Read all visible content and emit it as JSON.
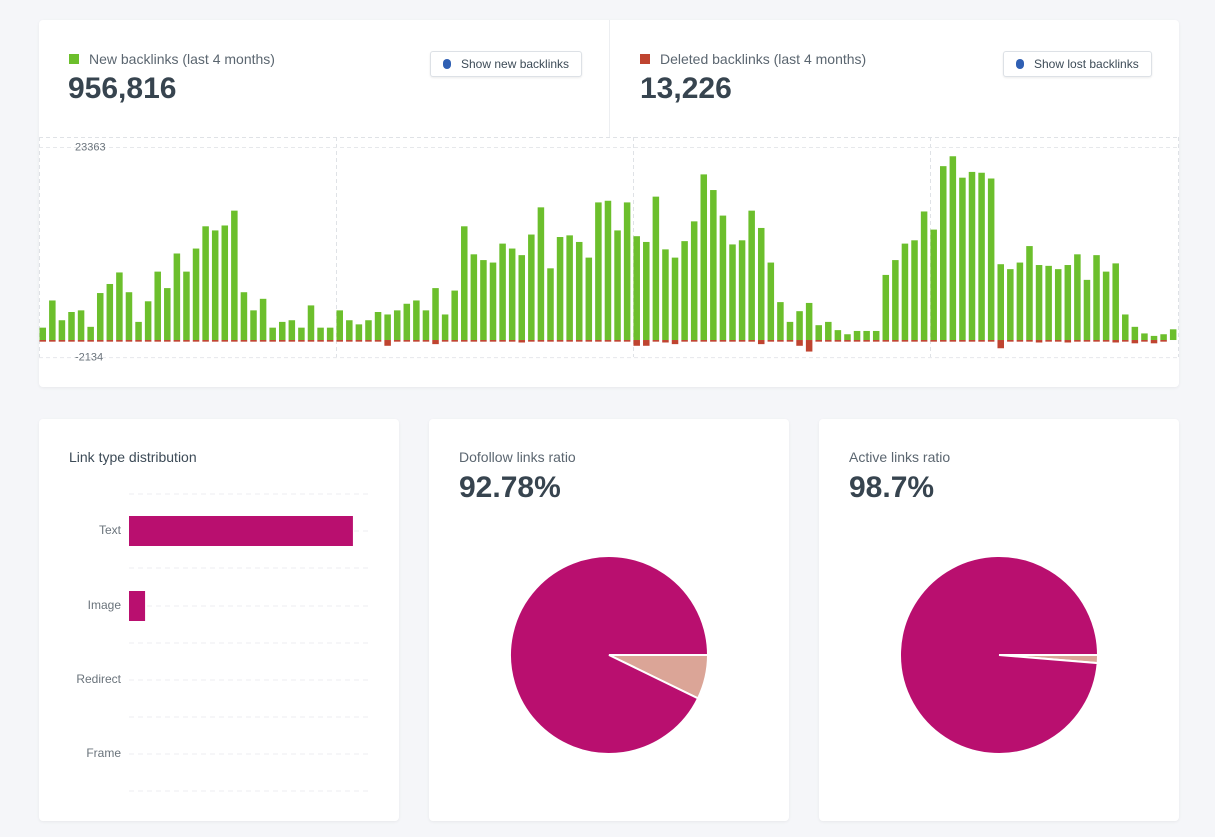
{
  "buttons": [
    "Show new backlinks",
    "Show lost backlinks"
  ],
  "chart_data": [
    {
      "type": "bar",
      "stacked_sign": true,
      "ylim": [
        -2134,
        23363
      ],
      "yticks": [
        23363,
        -2134
      ],
      "series": [
        {
          "name": "New backlinks (last 4 months)",
          "total": "956,816",
          "color": "#6cbf2c",
          "values": [
            1500,
            4800,
            2400,
            3400,
            3600,
            1600,
            5700,
            6800,
            8200,
            5800,
            2200,
            4700,
            8300,
            6300,
            10500,
            8300,
            11100,
            13800,
            13300,
            13900,
            15700,
            5800,
            3600,
            5000,
            1500,
            2200,
            2400,
            1500,
            4200,
            1500,
            1500,
            3600,
            2400,
            1900,
            2400,
            3400,
            3100,
            3600,
            4400,
            4800,
            3600,
            6300,
            3100,
            6000,
            13800,
            10400,
            9700,
            9400,
            11700,
            11100,
            10300,
            12800,
            16100,
            8700,
            12500,
            12700,
            11900,
            10000,
            16700,
            16900,
            13300,
            16700,
            12600,
            11900,
            17400,
            11000,
            10000,
            12000,
            14400,
            20100,
            18200,
            15100,
            11600,
            12100,
            15700,
            13600,
            9400,
            4600,
            2200,
            3500,
            4500,
            1800,
            2200,
            1200,
            700,
            1100,
            1100,
            1100,
            7900,
            9700,
            11700,
            12100,
            15600,
            13400,
            21100,
            22300,
            19700,
            20400,
            20300,
            19600,
            9200,
            8600,
            9400,
            11400,
            9100,
            9000,
            8600,
            9100,
            10400,
            7300,
            10300,
            8300,
            9300,
            3100,
            1600,
            800,
            500,
            700,
            1300
          ]
        },
        {
          "name": "Deleted backlinks (last 4 months)",
          "total": "13,226",
          "color": "#bf4430",
          "values": [
            -200,
            -200,
            -200,
            -200,
            -200,
            -200,
            -200,
            -200,
            -200,
            -200,
            -200,
            -200,
            -200,
            -200,
            -200,
            -200,
            -200,
            -200,
            -200,
            -200,
            -200,
            -200,
            -200,
            -200,
            -200,
            -200,
            -200,
            -200,
            -200,
            -200,
            -200,
            -200,
            -200,
            -200,
            -200,
            -200,
            -700,
            -200,
            -200,
            -200,
            -200,
            -500,
            -200,
            -200,
            -200,
            -200,
            -200,
            -200,
            -200,
            -200,
            -300,
            -200,
            -200,
            -200,
            -200,
            -200,
            -200,
            -200,
            -200,
            -200,
            -200,
            -200,
            -700,
            -700,
            -200,
            -300,
            -500,
            -200,
            -200,
            -200,
            -200,
            -200,
            -200,
            -200,
            -200,
            -500,
            -200,
            -200,
            -200,
            -700,
            -1400,
            -200,
            -200,
            -200,
            -200,
            -200,
            -200,
            -200,
            -200,
            -200,
            -200,
            -200,
            -200,
            -200,
            -200,
            -200,
            -200,
            -200,
            -200,
            -200,
            -1000,
            -200,
            -200,
            -200,
            -300,
            -200,
            -200,
            -300,
            -200,
            -200,
            -200,
            -200,
            -300,
            -200,
            -400,
            -200,
            -400,
            -200
          ]
        }
      ]
    },
    {
      "type": "hbar",
      "title": "Link type distribution",
      "categories": [
        "Text",
        "Image",
        "Redirect",
        "Frame"
      ],
      "values": [
        93.3,
        6.7,
        0,
        0
      ],
      "color": "#b90f6f"
    },
    {
      "type": "pie",
      "title": "Dofollow links ratio",
      "headline": "92.78%",
      "values": [
        92.78,
        7.22
      ],
      "colors": [
        "#b90f6f",
        "#dba597"
      ]
    },
    {
      "type": "pie",
      "title": "Active links ratio",
      "headline": "98.7%",
      "values": [
        98.7,
        1.3
      ],
      "colors": [
        "#b90f6f",
        "#dba597"
      ]
    }
  ]
}
